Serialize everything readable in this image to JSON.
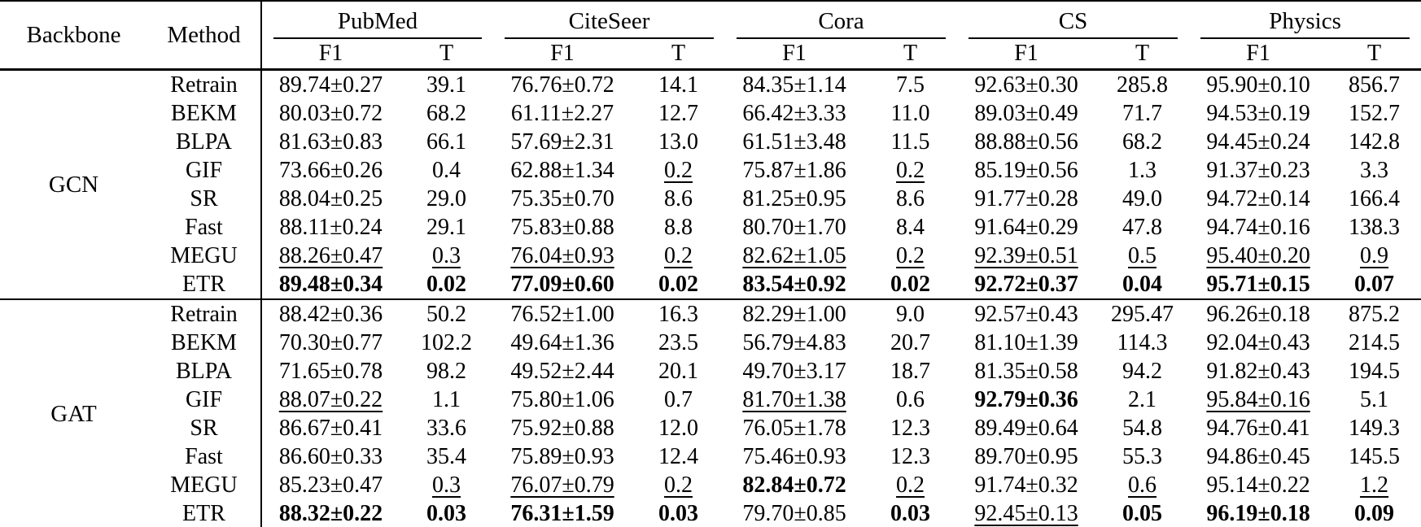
{
  "table": {
    "backbone_col_label": "Backbone",
    "method_col_label": "Method",
    "subheaders": [
      "F1",
      "T"
    ],
    "groups": [
      {
        "label": "PubMed"
      },
      {
        "label": "CiteSeer"
      },
      {
        "label": "Cora"
      },
      {
        "label": "CS"
      },
      {
        "label": "Physics"
      }
    ],
    "style_legend": {
      "b": "bold-best",
      "u": "underlined-second-best",
      "": "plain"
    },
    "sections": [
      {
        "backbone": "GCN",
        "rows": [
          {
            "method": "Retrain",
            "cells": [
              {
                "v": "89.74±0.27",
                "s": ""
              },
              {
                "v": "39.1",
                "s": ""
              },
              {
                "v": "76.76±0.72",
                "s": ""
              },
              {
                "v": "14.1",
                "s": ""
              },
              {
                "v": "84.35±1.14",
                "s": ""
              },
              {
                "v": "7.5",
                "s": ""
              },
              {
                "v": "92.63±0.30",
                "s": ""
              },
              {
                "v": "285.8",
                "s": ""
              },
              {
                "v": "95.90±0.10",
                "s": ""
              },
              {
                "v": "856.7",
                "s": ""
              }
            ]
          },
          {
            "method": "BEKM",
            "cells": [
              {
                "v": "80.03±0.72",
                "s": ""
              },
              {
                "v": "68.2",
                "s": ""
              },
              {
                "v": "61.11±2.27",
                "s": ""
              },
              {
                "v": "12.7",
                "s": ""
              },
              {
                "v": "66.42±3.33",
                "s": ""
              },
              {
                "v": "11.0",
                "s": ""
              },
              {
                "v": "89.03±0.49",
                "s": ""
              },
              {
                "v": "71.7",
                "s": ""
              },
              {
                "v": "94.53±0.19",
                "s": ""
              },
              {
                "v": "152.7",
                "s": ""
              }
            ]
          },
          {
            "method": "BLPA",
            "cells": [
              {
                "v": "81.63±0.83",
                "s": ""
              },
              {
                "v": "66.1",
                "s": ""
              },
              {
                "v": "57.69±2.31",
                "s": ""
              },
              {
                "v": "13.0",
                "s": ""
              },
              {
                "v": "61.51±3.48",
                "s": ""
              },
              {
                "v": "11.5",
                "s": ""
              },
              {
                "v": "88.88±0.56",
                "s": ""
              },
              {
                "v": "68.2",
                "s": ""
              },
              {
                "v": "94.45±0.24",
                "s": ""
              },
              {
                "v": "142.8",
                "s": ""
              }
            ]
          },
          {
            "method": "GIF",
            "cells": [
              {
                "v": "73.66±0.26",
                "s": ""
              },
              {
                "v": "0.4",
                "s": ""
              },
              {
                "v": "62.88±1.34",
                "s": ""
              },
              {
                "v": "0.2",
                "s": "u"
              },
              {
                "v": "75.87±1.86",
                "s": ""
              },
              {
                "v": "0.2",
                "s": "u"
              },
              {
                "v": "85.19±0.56",
                "s": ""
              },
              {
                "v": "1.3",
                "s": ""
              },
              {
                "v": "91.37±0.23",
                "s": ""
              },
              {
                "v": "3.3",
                "s": ""
              }
            ]
          },
          {
            "method": "SR",
            "cells": [
              {
                "v": "88.04±0.25",
                "s": ""
              },
              {
                "v": "29.0",
                "s": ""
              },
              {
                "v": "75.35±0.70",
                "s": ""
              },
              {
                "v": "8.6",
                "s": ""
              },
              {
                "v": "81.25±0.95",
                "s": ""
              },
              {
                "v": "8.6",
                "s": ""
              },
              {
                "v": "91.77±0.28",
                "s": ""
              },
              {
                "v": "49.0",
                "s": ""
              },
              {
                "v": "94.72±0.14",
                "s": ""
              },
              {
                "v": "166.4",
                "s": ""
              }
            ]
          },
          {
            "method": "Fast",
            "cells": [
              {
                "v": "88.11±0.24",
                "s": ""
              },
              {
                "v": "29.1",
                "s": ""
              },
              {
                "v": "75.83±0.88",
                "s": ""
              },
              {
                "v": "8.8",
                "s": ""
              },
              {
                "v": "80.70±1.70",
                "s": ""
              },
              {
                "v": "8.4",
                "s": ""
              },
              {
                "v": "91.64±0.29",
                "s": ""
              },
              {
                "v": "47.8",
                "s": ""
              },
              {
                "v": "94.74±0.16",
                "s": ""
              },
              {
                "v": "138.3",
                "s": ""
              }
            ]
          },
          {
            "method": "MEGU",
            "cells": [
              {
                "v": "88.26±0.47",
                "s": "u"
              },
              {
                "v": "0.3",
                "s": "u"
              },
              {
                "v": "76.04±0.93",
                "s": "u"
              },
              {
                "v": "0.2",
                "s": "u"
              },
              {
                "v": "82.62±1.05",
                "s": "u"
              },
              {
                "v": "0.2",
                "s": "u"
              },
              {
                "v": "92.39±0.51",
                "s": "u"
              },
              {
                "v": "0.5",
                "s": "u"
              },
              {
                "v": "95.40±0.20",
                "s": "u"
              },
              {
                "v": "0.9",
                "s": "u"
              }
            ]
          },
          {
            "method": "ETR",
            "cells": [
              {
                "v": "89.48±0.34",
                "s": "b"
              },
              {
                "v": "0.02",
                "s": "b"
              },
              {
                "v": "77.09±0.60",
                "s": "b"
              },
              {
                "v": "0.02",
                "s": "b"
              },
              {
                "v": "83.54±0.92",
                "s": "b"
              },
              {
                "v": "0.02",
                "s": "b"
              },
              {
                "v": "92.72±0.37",
                "s": "b"
              },
              {
                "v": "0.04",
                "s": "b"
              },
              {
                "v": "95.71±0.15",
                "s": "b"
              },
              {
                "v": "0.07",
                "s": "b"
              }
            ]
          }
        ]
      },
      {
        "backbone": "GAT",
        "rows": [
          {
            "method": "Retrain",
            "cells": [
              {
                "v": "88.42±0.36",
                "s": ""
              },
              {
                "v": "50.2",
                "s": ""
              },
              {
                "v": "76.52±1.00",
                "s": ""
              },
              {
                "v": "16.3",
                "s": ""
              },
              {
                "v": "82.29±1.00",
                "s": ""
              },
              {
                "v": "9.0",
                "s": ""
              },
              {
                "v": "92.57±0.43",
                "s": ""
              },
              {
                "v": "295.47",
                "s": ""
              },
              {
                "v": "96.26±0.18",
                "s": ""
              },
              {
                "v": "875.2",
                "s": ""
              }
            ]
          },
          {
            "method": "BEKM",
            "cells": [
              {
                "v": "70.30±0.77",
                "s": ""
              },
              {
                "v": "102.2",
                "s": ""
              },
              {
                "v": "49.64±1.36",
                "s": ""
              },
              {
                "v": "23.5",
                "s": ""
              },
              {
                "v": "56.79±4.83",
                "s": ""
              },
              {
                "v": "20.7",
                "s": ""
              },
              {
                "v": "81.10±1.39",
                "s": ""
              },
              {
                "v": "114.3",
                "s": ""
              },
              {
                "v": "92.04±0.43",
                "s": ""
              },
              {
                "v": "214.5",
                "s": ""
              }
            ]
          },
          {
            "method": "BLPA",
            "cells": [
              {
                "v": "71.65±0.78",
                "s": ""
              },
              {
                "v": "98.2",
                "s": ""
              },
              {
                "v": "49.52±2.44",
                "s": ""
              },
              {
                "v": "20.1",
                "s": ""
              },
              {
                "v": "49.70±3.17",
                "s": ""
              },
              {
                "v": "18.7",
                "s": ""
              },
              {
                "v": "81.35±0.58",
                "s": ""
              },
              {
                "v": "94.2",
                "s": ""
              },
              {
                "v": "91.82±0.43",
                "s": ""
              },
              {
                "v": "194.5",
                "s": ""
              }
            ]
          },
          {
            "method": "GIF",
            "cells": [
              {
                "v": "88.07±0.22",
                "s": "u"
              },
              {
                "v": "1.1",
                "s": ""
              },
              {
                "v": "75.80±1.06",
                "s": ""
              },
              {
                "v": "0.7",
                "s": ""
              },
              {
                "v": "81.70±1.38",
                "s": "u"
              },
              {
                "v": "0.6",
                "s": ""
              },
              {
                "v": "92.79±0.36",
                "s": "b"
              },
              {
                "v": "2.1",
                "s": ""
              },
              {
                "v": "95.84±0.16",
                "s": "u"
              },
              {
                "v": "5.1",
                "s": ""
              }
            ]
          },
          {
            "method": "SR",
            "cells": [
              {
                "v": "86.67±0.41",
                "s": ""
              },
              {
                "v": "33.6",
                "s": ""
              },
              {
                "v": "75.92±0.88",
                "s": ""
              },
              {
                "v": "12.0",
                "s": ""
              },
              {
                "v": "76.05±1.78",
                "s": ""
              },
              {
                "v": "12.3",
                "s": ""
              },
              {
                "v": "89.49±0.64",
                "s": ""
              },
              {
                "v": "54.8",
                "s": ""
              },
              {
                "v": "94.76±0.41",
                "s": ""
              },
              {
                "v": "149.3",
                "s": ""
              }
            ]
          },
          {
            "method": "Fast",
            "cells": [
              {
                "v": "86.60±0.33",
                "s": ""
              },
              {
                "v": "35.4",
                "s": ""
              },
              {
                "v": "75.89±0.93",
                "s": ""
              },
              {
                "v": "12.4",
                "s": ""
              },
              {
                "v": "75.46±0.93",
                "s": ""
              },
              {
                "v": "12.3",
                "s": ""
              },
              {
                "v": "89.70±0.95",
                "s": ""
              },
              {
                "v": "55.3",
                "s": ""
              },
              {
                "v": "94.86±0.45",
                "s": ""
              },
              {
                "v": "145.5",
                "s": ""
              }
            ]
          },
          {
            "method": "MEGU",
            "cells": [
              {
                "v": "85.23±0.47",
                "s": ""
              },
              {
                "v": "0.3",
                "s": "u"
              },
              {
                "v": "76.07±0.79",
                "s": "u"
              },
              {
                "v": "0.2",
                "s": "u"
              },
              {
                "v": "82.84±0.72",
                "s": "b"
              },
              {
                "v": "0.2",
                "s": "u"
              },
              {
                "v": "91.74±0.32",
                "s": ""
              },
              {
                "v": "0.6",
                "s": "u"
              },
              {
                "v": "95.14±0.22",
                "s": ""
              },
              {
                "v": "1.2",
                "s": "u"
              }
            ]
          },
          {
            "method": "ETR",
            "cells": [
              {
                "v": "88.32±0.22",
                "s": "b"
              },
              {
                "v": "0.03",
                "s": "b"
              },
              {
                "v": "76.31±1.59",
                "s": "b"
              },
              {
                "v": "0.03",
                "s": "b"
              },
              {
                "v": "79.70±0.85",
                "s": ""
              },
              {
                "v": "0.03",
                "s": "b"
              },
              {
                "v": "92.45±0.13",
                "s": "u"
              },
              {
                "v": "0.05",
                "s": "b"
              },
              {
                "v": "96.19±0.18",
                "s": "b"
              },
              {
                "v": "0.09",
                "s": "b"
              }
            ]
          }
        ]
      }
    ]
  }
}
